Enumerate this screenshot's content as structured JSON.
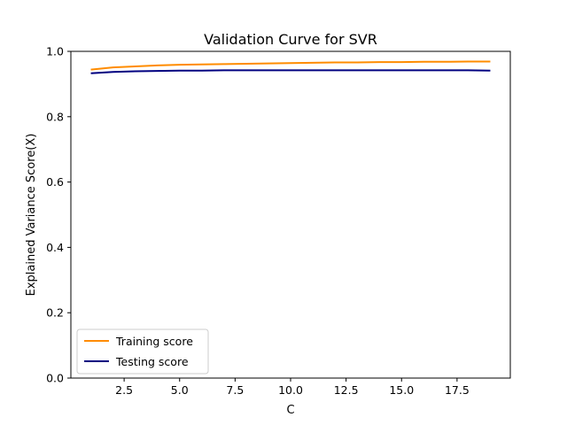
{
  "chart_data": {
    "type": "line",
    "title": "Validation Curve for SVR",
    "xlabel": "C",
    "ylabel": "Explained Variance Score(X)",
    "xlim": [
      0.1,
      19.9
    ],
    "ylim": [
      0.0,
      1.0
    ],
    "xticks": [
      2.5,
      5.0,
      7.5,
      10.0,
      12.5,
      15.0,
      17.5
    ],
    "xtick_labels": [
      "2.5",
      "5.0",
      "7.5",
      "10.0",
      "12.5",
      "15.0",
      "17.5"
    ],
    "yticks": [
      0.0,
      0.2,
      0.4,
      0.6,
      0.8,
      1.0
    ],
    "ytick_labels": [
      "0.0",
      "0.2",
      "0.4",
      "0.6",
      "0.8",
      "1.0"
    ],
    "grid": false,
    "legend_position": "lower-left",
    "x": [
      1,
      2,
      3,
      4,
      5,
      6,
      7,
      8,
      9,
      10,
      11,
      12,
      13,
      14,
      15,
      16,
      17,
      18,
      19
    ],
    "series": [
      {
        "name": "Training score",
        "color": "#ff8c00",
        "values": [
          0.944,
          0.951,
          0.954,
          0.957,
          0.959,
          0.96,
          0.961,
          0.962,
          0.963,
          0.964,
          0.965,
          0.966,
          0.966,
          0.967,
          0.967,
          0.968,
          0.968,
          0.969,
          0.969
        ]
      },
      {
        "name": "Testing score",
        "color": "#000080",
        "values": [
          0.933,
          0.937,
          0.939,
          0.94,
          0.941,
          0.941,
          0.942,
          0.942,
          0.942,
          0.942,
          0.942,
          0.942,
          0.942,
          0.942,
          0.942,
          0.942,
          0.942,
          0.942,
          0.941
        ]
      }
    ]
  }
}
